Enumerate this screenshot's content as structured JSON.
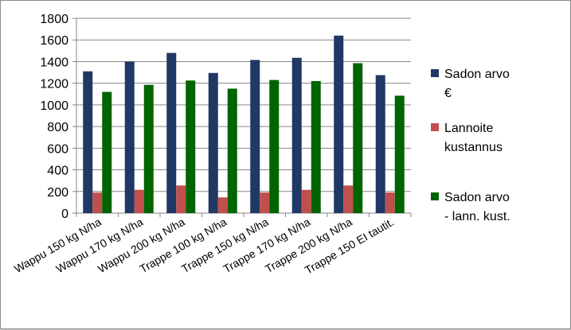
{
  "chart_data": {
    "type": "bar",
    "categories": [
      "Wappu 150 kg N/ha",
      "Wappu 170 kg N/ha",
      "Wappu 200 kg N/ha",
      "Trappe 100 kg N/ha",
      "Trappe 150 kg N/ha",
      "Trappe 170 kg N/ha",
      "Trappe 200 kg N/ha",
      "Trappe 150 EI tautit."
    ],
    "series": [
      {
        "name": "Sadon arvo €",
        "legend_lines": [
          "Sadon arvo",
          "€"
        ],
        "color": "#1f3864",
        "values": [
          1310,
          1400,
          1480,
          1295,
          1415,
          1435,
          1640,
          1275
        ]
      },
      {
        "name": "Lannoite kustannus",
        "legend_lines": [
          "Lannoite",
          "kustannus"
        ],
        "color": "#c0504d",
        "values": [
          190,
          215,
          255,
          145,
          190,
          215,
          255,
          190
        ]
      },
      {
        "name": "Sadon arvo - lann. kust.",
        "legend_lines": [
          "Sadon arvo",
          "- lann. kust."
        ],
        "color": "#006400",
        "values": [
          1120,
          1185,
          1225,
          1150,
          1230,
          1220,
          1385,
          1085
        ]
      }
    ],
    "ylim": [
      0,
      1800
    ],
    "yticks": [
      0,
      200,
      400,
      600,
      800,
      1000,
      1200,
      1400,
      1600,
      1800
    ],
    "grid": true,
    "legend_position": "right",
    "title": "",
    "xlabel": "",
    "ylabel": ""
  }
}
